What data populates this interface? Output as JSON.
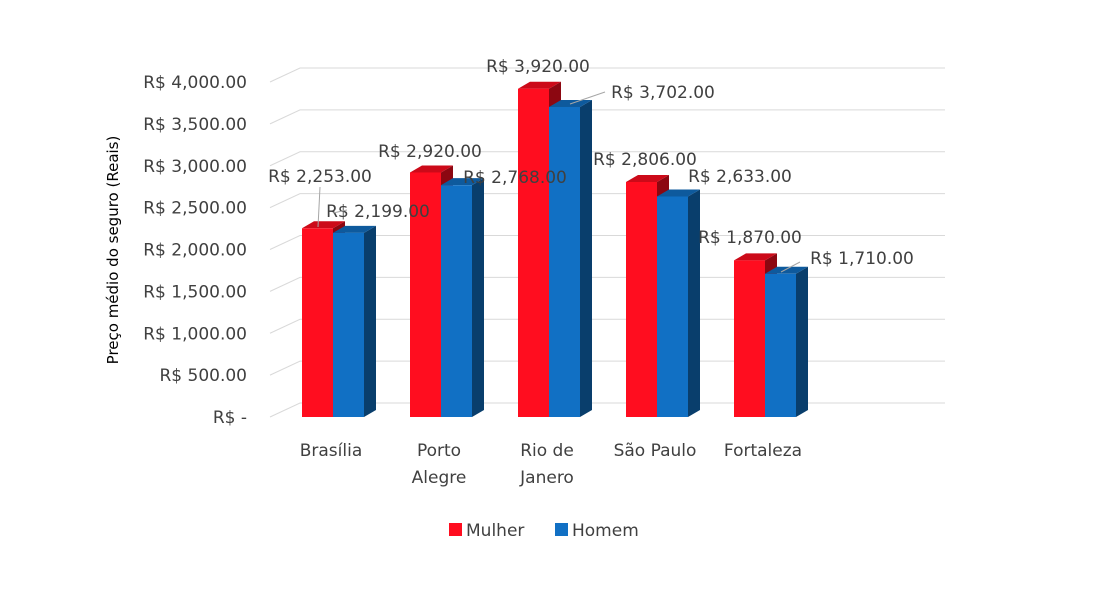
{
  "chart_data": {
    "type": "bar",
    "categories": [
      [
        "Brasília"
      ],
      [
        "Porto",
        "Alegre"
      ],
      [
        "Rio de",
        "Janero"
      ],
      [
        "São Paulo"
      ],
      [
        "Fortaleza"
      ]
    ],
    "series": [
      {
        "name": "Mulher",
        "color": "#ff0d1f",
        "values": [
          2253,
          2920,
          3920,
          2806,
          1870
        ],
        "labels": [
          "R$ 2,253.00",
          "R$ 2,920.00",
          "R$ 3,920.00",
          "R$ 2,806.00",
          "R$ 1,870.00"
        ]
      },
      {
        "name": "Homem",
        "color": "#1170c4",
        "values": [
          2199,
          2768,
          3702,
          2633,
          1710
        ],
        "labels": [
          "R$ 2,199.00",
          "R$ 2,768.00",
          "R$ 3,702.00",
          "R$ 2,633.00",
          "R$ 1,710.00"
        ]
      }
    ],
    "ylabel": "Preço médio do seguro (Reais)",
    "ylim": [
      0,
      4000
    ],
    "yticks": [
      0,
      500,
      1000,
      1500,
      2000,
      2500,
      3000,
      3500,
      4000
    ],
    "ytick_labels": [
      "R$ -",
      "R$ 500.00",
      "R$ 1,000.00",
      "R$ 1,500.00",
      "R$ 2,000.00",
      "R$ 2,500.00",
      "R$ 3,000.00",
      "R$ 3,500.00",
      "R$ 4,000.00"
    ],
    "grid": true,
    "legend_position": "bottom",
    "style": "3d-clustered-column"
  }
}
